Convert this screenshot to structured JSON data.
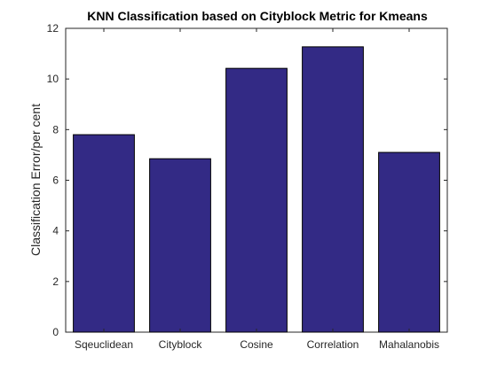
{
  "chart_data": {
    "type": "bar",
    "title": "KNN Classification based on Cityblock Metric for Kmeans",
    "xlabel": "",
    "ylabel": "Classification Error/per cent",
    "categories": [
      "Sqeuclidean",
      "Cityblock",
      "Cosine",
      "Correlation",
      "Mahalanobis"
    ],
    "values": [
      7.8,
      6.85,
      10.42,
      11.27,
      7.1
    ],
    "ylim": [
      0,
      12
    ],
    "yticks": [
      0,
      2,
      4,
      6,
      8,
      10,
      12
    ],
    "grid": false,
    "legend": "none",
    "bar_color": "#332a85",
    "bar_edge_color": "#000000"
  }
}
